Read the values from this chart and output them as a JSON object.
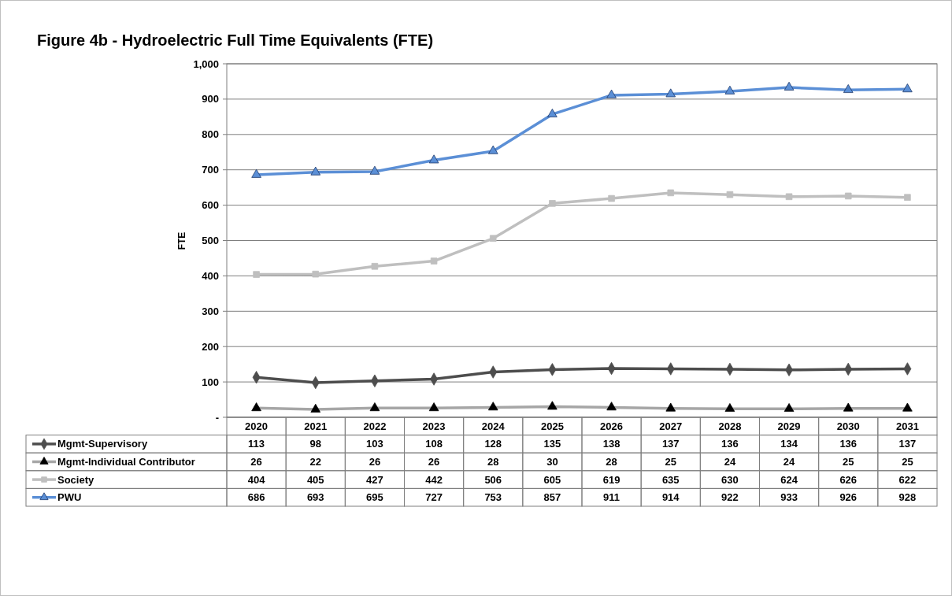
{
  "chart_data": {
    "type": "line",
    "title": "Figure 4b - Hydroelectric Full Time Equivalents (FTE)",
    "ylabel": "FTE",
    "categories": [
      "2020",
      "2021",
      "2022",
      "2023",
      "2024",
      "2025",
      "2026",
      "2027",
      "2028",
      "2029",
      "2030",
      "2031"
    ],
    "ylim": [
      0,
      1000
    ],
    "yticks": [
      {
        "value": 0,
        "label": "-"
      },
      100,
      200,
      300,
      400,
      500,
      600,
      700,
      800,
      900,
      {
        "value": 1000,
        "label": "1,000"
      }
    ],
    "grid": "y",
    "legend": "bottom",
    "data_labels": true,
    "series": [
      {
        "name": "Mgmt-Supervisory",
        "color": "#4d4d4d",
        "marker": "diamond",
        "values": [
          113,
          98,
          103,
          108,
          128,
          135,
          138,
          137,
          136,
          134,
          136,
          137
        ]
      },
      {
        "name": "Mgmt-Individual Contributor",
        "color": "#a6a6a6",
        "marker": "triangle",
        "values": [
          26,
          22,
          26,
          26,
          28,
          30,
          28,
          25,
          24,
          24,
          25,
          25
        ]
      },
      {
        "name": "Society",
        "color": "#bfbfbf",
        "marker": "square",
        "values": [
          404,
          405,
          427,
          442,
          506,
          605,
          619,
          635,
          630,
          624,
          626,
          622
        ]
      },
      {
        "name": "PWU",
        "color": "#5b8fd6",
        "marker": "triangle",
        "values": [
          686,
          693,
          695,
          727,
          753,
          857,
          911,
          914,
          922,
          933,
          926,
          928
        ]
      }
    ]
  }
}
